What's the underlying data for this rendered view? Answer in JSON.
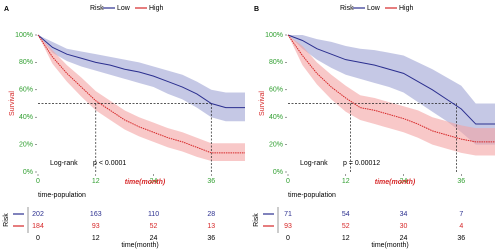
{
  "chart_data": [
    {
      "type": "line",
      "label": "A",
      "legend_title": "Risk",
      "xlabel": "time(month)",
      "ylabel": "Survival",
      "tick_color": "#2e9e2e",
      "label_color": "#d62728",
      "x": [
        0,
        3,
        6,
        9,
        12,
        15,
        18,
        21,
        24,
        27,
        30,
        33,
        36,
        39,
        43
      ],
      "xlim": [
        0,
        43
      ],
      "xticks": [
        0,
        12,
        24,
        36
      ],
      "ylim": [
        0,
        100
      ],
      "yticks": [
        {
          "value": 0,
          "label": "0%"
        },
        {
          "value": 20,
          "label": "20%"
        },
        {
          "value": 40,
          "label": "40%"
        },
        {
          "value": 60,
          "label": "60%"
        },
        {
          "value": 80,
          "label": "80%"
        },
        {
          "value": 100,
          "label": "100%"
        }
      ],
      "series": [
        {
          "name": "Low",
          "color": "#2b2f8f",
          "band_color": "#9fa3d3",
          "values": [
            100,
            91,
            86,
            83,
            80,
            78,
            75,
            73,
            70,
            66,
            62,
            57,
            50,
            47,
            47
          ],
          "lower": [
            100,
            87,
            81,
            77,
            74,
            71,
            68,
            65,
            62,
            57,
            53,
            47,
            40,
            37,
            37
          ],
          "upper": [
            100,
            95,
            90,
            88,
            86,
            84,
            82,
            80,
            77,
            74,
            71,
            66,
            60,
            58,
            58
          ]
        },
        {
          "name": "High",
          "color": "#d62728",
          "band_color": "#f4a3a3",
          "values": [
            100,
            84,
            72,
            62,
            52,
            45,
            38,
            33,
            29,
            25,
            22,
            18,
            14,
            14,
            14
          ],
          "lower": [
            100,
            79,
            66,
            55,
            45,
            38,
            31,
            26,
            22,
            18,
            15,
            11,
            8,
            8,
            8
          ],
          "upper": [
            100,
            89,
            78,
            69,
            59,
            52,
            45,
            40,
            36,
            32,
            29,
            25,
            21,
            21,
            21
          ]
        }
      ],
      "reference_lines": {
        "y": 50,
        "x": [
          12,
          36
        ]
      },
      "annotations": [
        "Log-rank",
        "p < 0.0001"
      ],
      "risk_table": {
        "title": "time-population",
        "ylabel": "Risk",
        "xlabel": "time(month)",
        "times": [
          0,
          12,
          24,
          36
        ],
        "counts": [
          [
            202,
            163,
            110,
            28
          ],
          [
            184,
            93,
            52,
            13
          ]
        ]
      }
    },
    {
      "type": "line",
      "label": "B",
      "legend_title": "Risk",
      "xlabel": "time(month)",
      "ylabel": "Survival",
      "tick_color": "#2e9e2e",
      "label_color": "#d62728",
      "x": [
        0,
        3,
        6,
        9,
        12,
        15,
        18,
        21,
        24,
        27,
        30,
        33,
        36,
        39,
        43
      ],
      "xlim": [
        0,
        43
      ],
      "xticks": [
        0,
        12,
        24,
        36
      ],
      "ylim": [
        0,
        100
      ],
      "yticks": [
        {
          "value": 0,
          "label": "0%"
        },
        {
          "value": 20,
          "label": "20%"
        },
        {
          "value": 40,
          "label": "40%"
        },
        {
          "value": 60,
          "label": "60%"
        },
        {
          "value": 80,
          "label": "80%"
        },
        {
          "value": 100,
          "label": "100%"
        }
      ],
      "series": [
        {
          "name": "Low",
          "color": "#2b2f8f",
          "band_color": "#9fa3d3",
          "values": [
            100,
            96,
            90,
            86,
            82,
            80,
            78,
            75,
            72,
            66,
            60,
            53,
            46,
            35,
            35
          ],
          "lower": [
            100,
            90,
            82,
            76,
            71,
            68,
            65,
            62,
            58,
            51,
            44,
            37,
            29,
            20,
            20
          ],
          "upper": [
            100,
            100,
            97,
            95,
            92,
            90,
            89,
            87,
            85,
            80,
            75,
            69,
            63,
            50,
            50
          ]
        },
        {
          "name": "High",
          "color": "#d62728",
          "band_color": "#f4a3a3",
          "values": [
            100,
            85,
            72,
            62,
            54,
            47,
            45,
            42,
            39,
            35,
            30,
            27,
            24,
            22,
            22
          ],
          "lower": [
            100,
            78,
            64,
            53,
            44,
            38,
            35,
            32,
            29,
            25,
            20,
            17,
            14,
            12,
            12
          ],
          "upper": [
            100,
            92,
            80,
            71,
            63,
            56,
            54,
            51,
            48,
            45,
            40,
            37,
            34,
            32,
            32
          ]
        }
      ],
      "reference_lines": {
        "y": 50,
        "x": [
          13,
          35
        ]
      },
      "annotations": [
        "Log-rank",
        "p = 0.00012"
      ],
      "risk_table": {
        "title": "time-population",
        "ylabel": "Risk",
        "xlabel": "time(month)",
        "times": [
          0,
          12,
          24,
          36
        ],
        "counts": [
          [
            71,
            54,
            34,
            7
          ],
          [
            93,
            52,
            30,
            4
          ]
        ]
      }
    }
  ]
}
